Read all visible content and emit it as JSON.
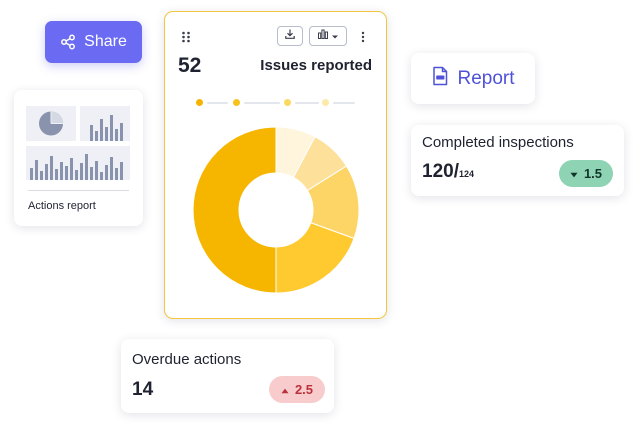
{
  "share_button": {
    "label": "Share",
    "icon": "share-icon"
  },
  "actions_report": {
    "label": "Actions report",
    "icons": [
      "pie-chart-thumbnail",
      "bar-chart-thumbnail"
    ]
  },
  "issues_card": {
    "count": "52",
    "title": "Issues reported",
    "toolbar_icons": [
      "drag-handle-icon",
      "download-icon",
      "chart-type-icon",
      "chevron-down-icon",
      "more-vertical-icon"
    ],
    "legend_colors": [
      "#f5b400",
      "#f6c21e",
      "#fbd95e",
      "#fde9a8"
    ],
    "donut_colors": [
      "#f6b600",
      "#ffc930",
      "#fdd566",
      "#fde19a",
      "#fff4dc"
    ]
  },
  "report_button": {
    "label": "Report",
    "icon": "pdf-file-icon"
  },
  "completed_inspections": {
    "title": "Completed inspections",
    "value": "120/",
    "total": "124",
    "change": "1.5",
    "change_icon": "triangle-down-icon",
    "change_color": "#8ed3b4"
  },
  "overdue_actions": {
    "title": "Overdue actions",
    "value": "14",
    "change": "2.5",
    "change_icon": "triangle-up-icon",
    "change_color": "#f8cccc"
  }
}
